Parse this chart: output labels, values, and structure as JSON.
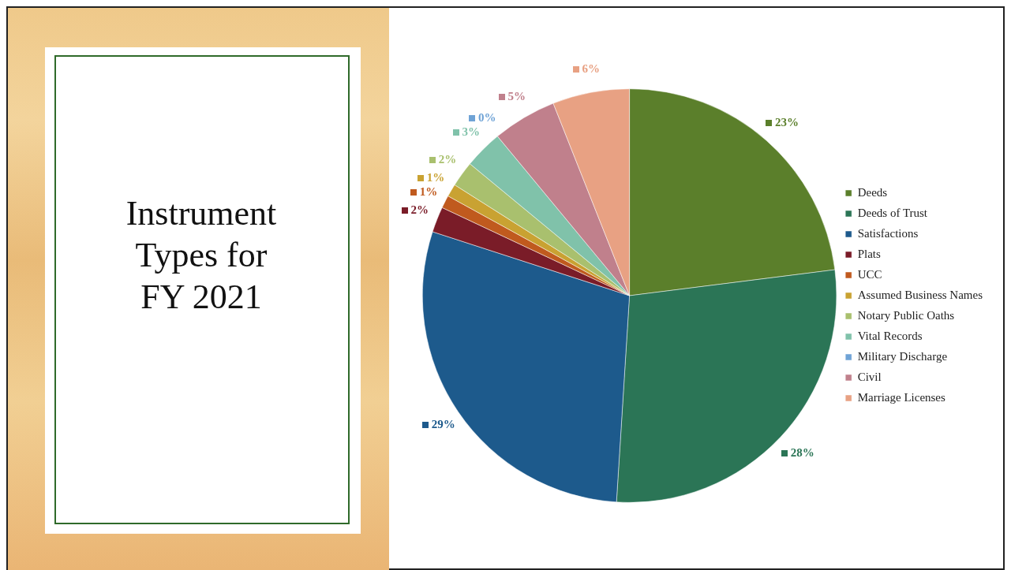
{
  "chart_data": {
    "type": "pie",
    "title": "Instrument Types for FY 2021",
    "categories": [
      "Deeds",
      "Deeds of Trust",
      "Satisfactions",
      "Plats",
      "UCC",
      "Assumed Business Names",
      "Notary Public Oaths",
      "Vital Records",
      "Military Discharge",
      "Civil",
      "Marriage Licenses"
    ],
    "values": [
      23,
      28,
      29,
      2,
      1,
      1,
      2,
      3,
      0,
      5,
      6
    ],
    "value_labels": [
      "23%",
      "28%",
      "29%",
      "2%",
      "1%",
      "1%",
      "2%",
      "3%",
      "0%",
      "5%",
      "6%"
    ],
    "colors": [
      "#5b7f2b",
      "#2b7556",
      "#1d5a8c",
      "#7a1c28",
      "#c05a1e",
      "#c9a232",
      "#a9c06e",
      "#80c2aa",
      "#6fa3d6",
      "#c0808c",
      "#e8a183"
    ],
    "legend": "right"
  }
}
